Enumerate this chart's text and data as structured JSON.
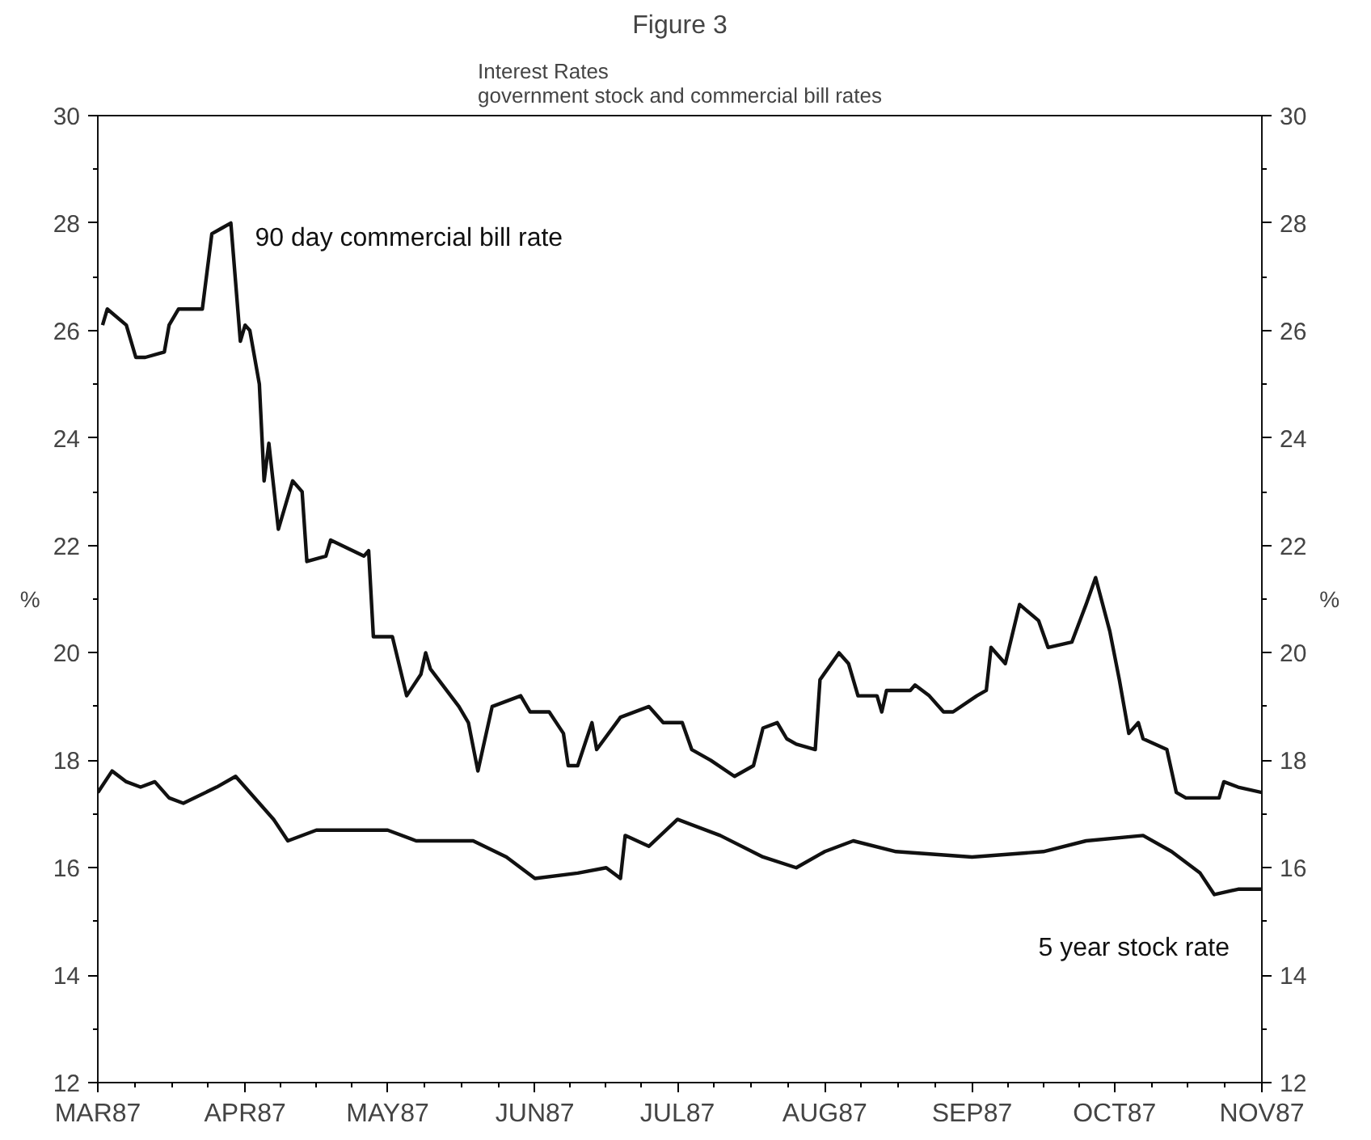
{
  "chart_data": {
    "type": "line",
    "title": "Figure 3",
    "subtitle": "Interest Rates\ngovernment stock and commercial bill rates",
    "ylabel": "%",
    "y2label": "%",
    "xlim": [
      "1987-03-01",
      "1987-11-01"
    ],
    "xticks": [
      {
        "value": "1987-03-01",
        "label": "MAR87"
      },
      {
        "value": "1987-04-01",
        "label": "APR87"
      },
      {
        "value": "1987-05-01",
        "label": "MAY87"
      },
      {
        "value": "1987-06-01",
        "label": "JUN87"
      },
      {
        "value": "1987-07-01",
        "label": "JUL87"
      },
      {
        "value": "1987-08-01",
        "label": "AUG87"
      },
      {
        "value": "1987-09-01",
        "label": "SEP87"
      },
      {
        "value": "1987-10-01",
        "label": "OCT87"
      },
      {
        "value": "1987-11-01",
        "label": "NOV87"
      }
    ],
    "ylim": [
      12,
      30
    ],
    "yticks": [
      12,
      14,
      16,
      18,
      20,
      22,
      24,
      26,
      28,
      30
    ],
    "y2lim": [
      12,
      30
    ],
    "y2ticks": [
      12,
      14,
      16,
      18,
      20,
      22,
      24,
      26,
      28,
      30
    ],
    "grid": false,
    "legend": false,
    "marker": "none",
    "line_style": "solid",
    "series": [
      {
        "name": "90 day commercial bill rate",
        "color": "#111111",
        "x": [
          "1987-03-02",
          "1987-03-03",
          "1987-03-07",
          "1987-03-09",
          "1987-03-11",
          "1987-03-15",
          "1987-03-16",
          "1987-03-18",
          "1987-03-23",
          "1987-03-25",
          "1987-03-27",
          "1987-03-29",
          "1987-03-30",
          "1987-03-31",
          "1987-04-01",
          "1987-04-02",
          "1987-04-04",
          "1987-04-05",
          "1987-04-06",
          "1987-04-07",
          "1987-04-08",
          "1987-04-11",
          "1987-04-13",
          "1987-04-14",
          "1987-04-18",
          "1987-04-19",
          "1987-04-26",
          "1987-04-27",
          "1987-04-28",
          "1987-05-02",
          "1987-05-05",
          "1987-05-08",
          "1987-05-09",
          "1987-05-10",
          "1987-05-16",
          "1987-05-18",
          "1987-05-20",
          "1987-05-21",
          "1987-05-23",
          "1987-05-29",
          "1987-05-31",
          "1987-06-04",
          "1987-06-07",
          "1987-06-08",
          "1987-06-10",
          "1987-06-13",
          "1987-06-14",
          "1987-06-19",
          "1987-06-25",
          "1987-06-26",
          "1987-06-28",
          "1987-07-02",
          "1987-07-04",
          "1987-07-08",
          "1987-07-13",
          "1987-07-17",
          "1987-07-19",
          "1987-07-22",
          "1987-07-24",
          "1987-07-26",
          "1987-07-30",
          "1987-07-31",
          "1987-08-04",
          "1987-08-06",
          "1987-08-08",
          "1987-08-12",
          "1987-08-13",
          "1987-08-14",
          "1987-08-19",
          "1987-08-20",
          "1987-08-23",
          "1987-08-26",
          "1987-08-28",
          "1987-09-02",
          "1987-09-04",
          "1987-09-05",
          "1987-09-08",
          "1987-09-11",
          "1987-09-15",
          "1987-09-17",
          "1987-09-22",
          "1987-09-25",
          "1987-09-27",
          "1987-09-30",
          "1987-10-02",
          "1987-10-04",
          "1987-10-06",
          "1987-10-07",
          "1987-10-12",
          "1987-10-14",
          "1987-10-16",
          "1987-10-23",
          "1987-10-24",
          "1987-10-27",
          "1987-11-01"
        ],
        "values": [
          26.1,
          26.4,
          26.1,
          25.5,
          25.5,
          25.6,
          26.1,
          26.4,
          26.4,
          27.8,
          27.9,
          28.0,
          26.9,
          25.8,
          26.1,
          26.0,
          25.0,
          23.2,
          23.9,
          23.1,
          22.3,
          23.2,
          23.0,
          21.7,
          21.8,
          22.1,
          21.8,
          21.9,
          20.3,
          20.3,
          19.2,
          19.6,
          20.0,
          19.7,
          19.0,
          18.7,
          17.8,
          18.2,
          19.0,
          19.2,
          18.9,
          18.9,
          18.5,
          17.9,
          17.9,
          18.7,
          18.2,
          18.8,
          19.0,
          18.9,
          18.7,
          18.7,
          18.2,
          18.0,
          17.7,
          17.9,
          18.6,
          18.7,
          18.4,
          18.3,
          18.2,
          19.5,
          20.0,
          19.8,
          19.2,
          19.2,
          18.9,
          19.3,
          19.3,
          19.4,
          19.2,
          18.9,
          18.9,
          19.2,
          19.3,
          20.1,
          19.8,
          20.9,
          20.6,
          20.1,
          20.2,
          20.9,
          21.4,
          20.4,
          19.5,
          18.5,
          18.7,
          18.4,
          18.2,
          17.4,
          17.3,
          17.3,
          17.6,
          17.5,
          17.4
        ]
      },
      {
        "name": "5 year stock rate",
        "color": "#111111",
        "x": [
          "1987-03-01",
          "1987-03-04",
          "1987-03-07",
          "1987-03-10",
          "1987-03-13",
          "1987-03-16",
          "1987-03-19",
          "1987-03-26",
          "1987-03-30",
          "1987-04-04",
          "1987-04-07",
          "1987-04-10",
          "1987-04-16",
          "1987-04-22",
          "1987-05-01",
          "1987-05-07",
          "1987-05-19",
          "1987-05-26",
          "1987-06-01",
          "1987-06-10",
          "1987-06-16",
          "1987-06-19",
          "1987-06-20",
          "1987-06-25",
          "1987-07-01",
          "1987-07-10",
          "1987-07-19",
          "1987-07-26",
          "1987-08-01",
          "1987-08-07",
          "1987-08-16",
          "1987-09-01",
          "1987-09-16",
          "1987-09-25",
          "1987-10-07",
          "1987-10-13",
          "1987-10-19",
          "1987-10-22",
          "1987-10-27",
          "1987-11-01"
        ],
        "values": [
          17.4,
          17.8,
          17.6,
          17.5,
          17.6,
          17.3,
          17.2,
          17.5,
          17.7,
          17.2,
          16.9,
          16.5,
          16.7,
          16.7,
          16.7,
          16.5,
          16.5,
          16.2,
          15.8,
          15.9,
          16.0,
          15.8,
          16.6,
          16.4,
          16.9,
          16.6,
          16.2,
          16.0,
          16.3,
          16.5,
          16.3,
          16.2,
          16.3,
          16.5,
          16.6,
          16.3,
          15.9,
          15.5,
          15.6,
          15.6
        ]
      }
    ]
  }
}
